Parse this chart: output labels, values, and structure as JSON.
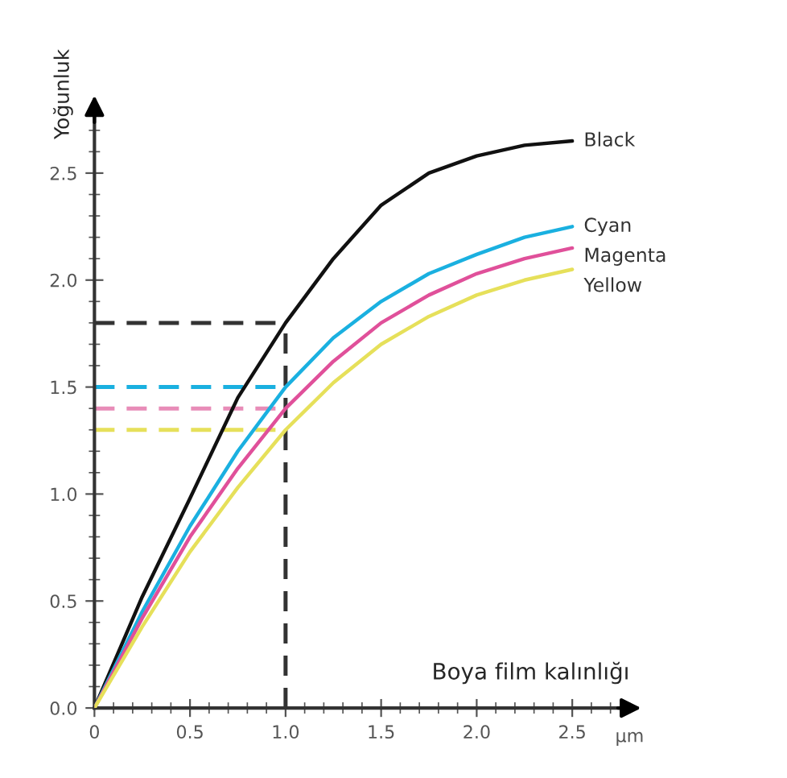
{
  "chart_data": {
    "type": "line",
    "xlabel": "Boya film kalınlığı",
    "ylabel": "Yoğunluk",
    "x": [
      0,
      0.25,
      0.5,
      0.75,
      1.0,
      1.25,
      1.5,
      1.75,
      2.0,
      2.25,
      2.5
    ],
    "series": [
      {
        "name": "Black",
        "color": "#111111",
        "values": [
          0,
          0.52,
          0.98,
          1.45,
          1.8,
          2.1,
          2.35,
          2.5,
          2.58,
          2.63,
          2.65
        ]
      },
      {
        "name": "Cyan",
        "color": "#1ab0e0",
        "values": [
          0,
          0.45,
          0.85,
          1.2,
          1.5,
          1.73,
          1.9,
          2.03,
          2.12,
          2.2,
          2.25
        ]
      },
      {
        "name": "Magenta",
        "color": "#e0509a",
        "values": [
          0,
          0.42,
          0.8,
          1.12,
          1.4,
          1.62,
          1.8,
          1.93,
          2.03,
          2.1,
          2.15
        ]
      },
      {
        "name": "Yellow",
        "color": "#e6e05a",
        "values": [
          0,
          0.38,
          0.73,
          1.03,
          1.3,
          1.52,
          1.7,
          1.83,
          1.93,
          2.0,
          2.05
        ]
      }
    ],
    "xlim": [
      0,
      2.8
    ],
    "ylim": [
      0,
      2.8
    ],
    "xticks": [
      {
        "value": 0,
        "label": "0"
      },
      0.5,
      {
        "value": 1.0,
        "label": "1.0"
      },
      1.5,
      {
        "value": 2.0,
        "label": "2.0"
      },
      2.5
    ],
    "yticks": [
      {
        "value": 0,
        "label": "0.0"
      },
      0.5,
      {
        "value": 1.0,
        "label": "1.0"
      },
      1.5,
      {
        "value": 2.0,
        "label": "2.0"
      },
      2.5
    ],
    "ref_lines": [
      {
        "axis": "x",
        "value": 1.0,
        "color": "#333333",
        "line_style": "dashed"
      },
      {
        "axis": "y",
        "value": 1.8,
        "color": "#333333",
        "line_style": "dashed"
      },
      {
        "axis": "y",
        "value": 1.5,
        "color": "#1ab0e0",
        "line_style": "dashed"
      },
      {
        "axis": "y",
        "value": 1.4,
        "color": "#e88cb8",
        "line_style": "dashed"
      },
      {
        "axis": "y",
        "value": 1.3,
        "color": "#e6e05a",
        "line_style": "dashed"
      }
    ],
    "annotations": [
      "µm"
    ],
    "grid": false,
    "legend": false,
    "marker": "none",
    "line_style": "solid"
  }
}
